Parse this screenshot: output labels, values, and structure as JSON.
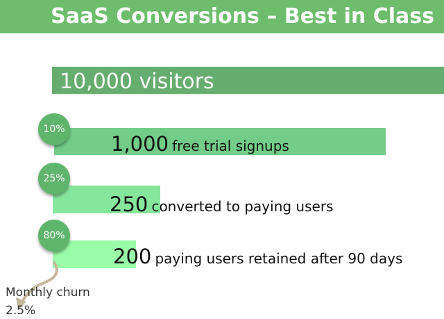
{
  "title": "SaaS Conversions – Best in Class",
  "colors": {
    "header": "#6dbd6d",
    "visitors_bar": "#66ad6f",
    "trial_bar": "#73cd88",
    "converted_bar": "#86e69c",
    "retained_bar": "#98fca8",
    "circle": "#5fb56c",
    "arrow": "#c4b79a"
  },
  "chart_data": {
    "type": "bar",
    "title": "SaaS Conversions – Best in Class",
    "orientation": "horizontal",
    "categories": [
      "visitors",
      "free trial signups",
      "converted to paying users",
      "paying users retained after 90 days"
    ],
    "values": [
      10000,
      1000,
      250,
      200
    ],
    "stages": [
      {
        "value": 10000,
        "value_label": "10,000",
        "label": "visitors",
        "rate": ""
      },
      {
        "value": 1000,
        "value_label": "1,000",
        "label": "free trial signups",
        "rate": "10%"
      },
      {
        "value": 250,
        "value_label": "250",
        "label": "converted to paying users",
        "rate": "25%"
      },
      {
        "value": 200,
        "value_label": "200",
        "label": "paying users retained after 90 days",
        "rate": "80%"
      }
    ],
    "annotation": {
      "line1": "Monthly churn",
      "line2": "2.5%"
    }
  }
}
